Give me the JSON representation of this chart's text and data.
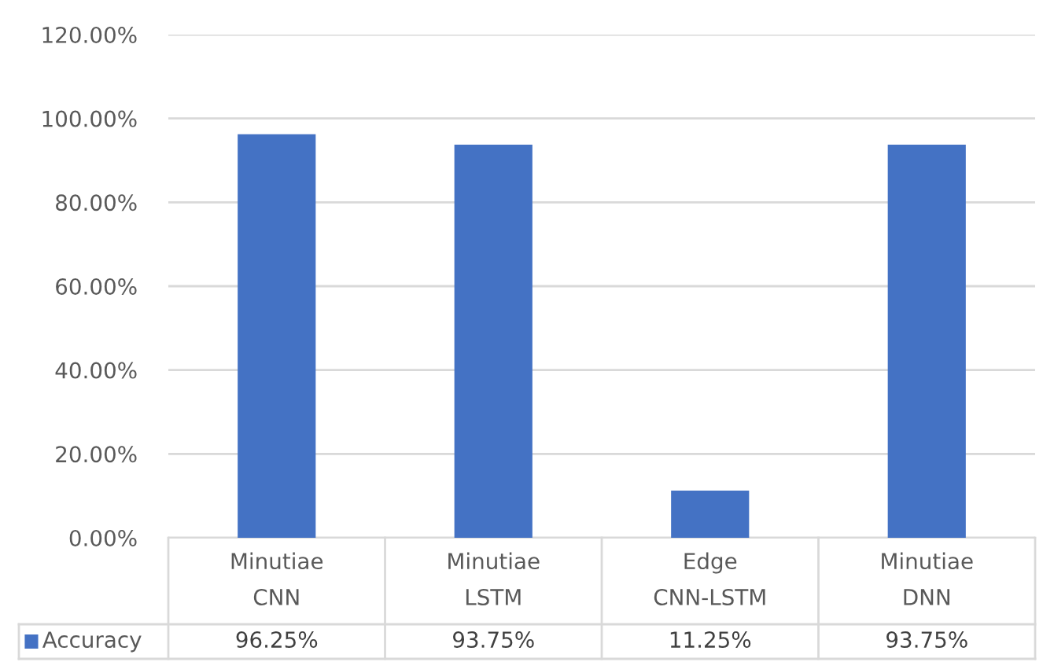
{
  "chart_data": {
    "type": "bar",
    "categories": [
      "Minutiae CNN",
      "Minutiae LSTM",
      "Edge CNN-LSTM",
      "Minutiae DNN"
    ],
    "series": [
      {
        "name": "Accuracy",
        "color": "#4472c4",
        "values": [
          96.25,
          93.75,
          11.25,
          93.75
        ],
        "value_labels": [
          "96.25%",
          "93.75%",
          "11.25%",
          "93.75%"
        ]
      }
    ],
    "ylim": [
      0,
      120
    ],
    "yticks": [
      {
        "value": 0,
        "label": "0.00%"
      },
      {
        "value": 20,
        "label": "20.00%"
      },
      {
        "value": 40,
        "label": "40.00%"
      },
      {
        "value": 60,
        "label": "60.00%"
      },
      {
        "value": 80,
        "label": "80.00%"
      },
      {
        "value": 100,
        "label": "100.00%"
      },
      {
        "value": 120,
        "label": "120.00%"
      }
    ],
    "grid": "y",
    "legend": "bottom"
  }
}
